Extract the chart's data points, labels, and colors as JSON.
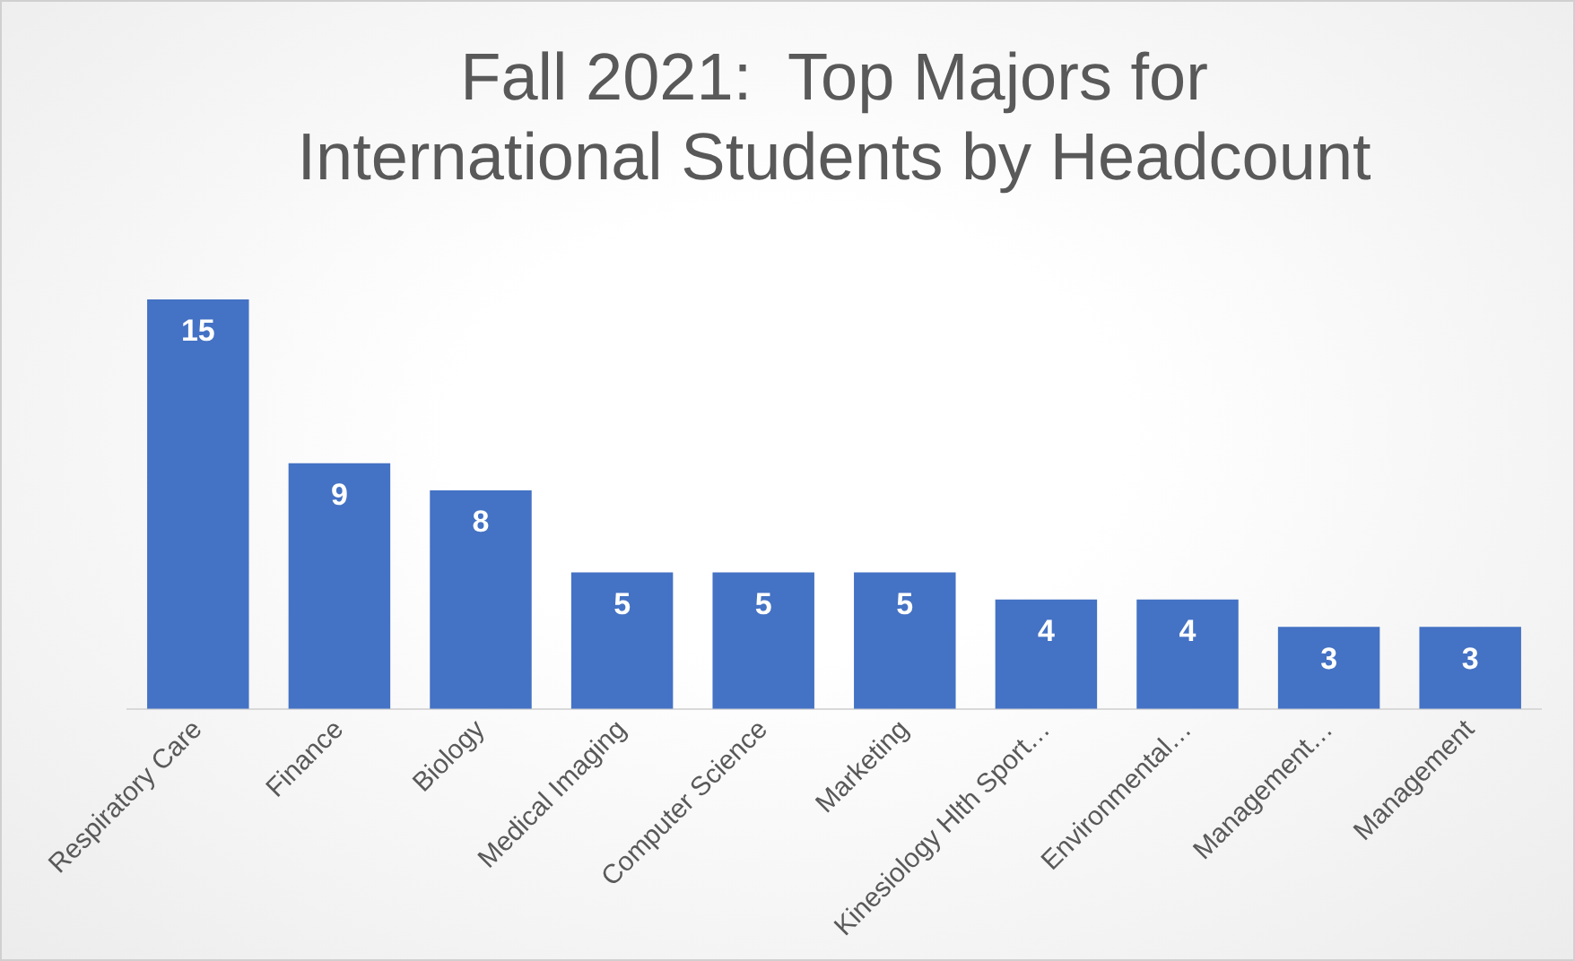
{
  "chart_data": {
    "type": "bar",
    "title": "Fall 2021:  Top Majors for\nInternational Students by Headcount",
    "categories": [
      "Respiratory Care",
      "Finance",
      "Biology",
      "Medical Imaging",
      "Computer Science",
      "Marketing",
      "Kinesiology Hlth Sport…",
      "Environmental…",
      "Management…",
      "Management"
    ],
    "values": [
      15,
      9,
      8,
      5,
      5,
      5,
      4,
      4,
      3,
      3
    ],
    "color": "#4472c4",
    "data_labels": true,
    "grid": false,
    "legend": false
  }
}
